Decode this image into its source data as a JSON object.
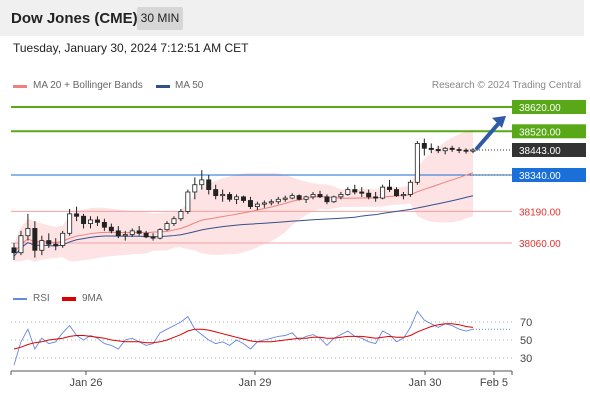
{
  "header": {
    "title": "Dow Jones (CME)",
    "timeframe": "30 MIN",
    "datetime": "Tuesday, January 30, 2024 7:12:51 AM CET"
  },
  "legend": {
    "ma20": "MA 20 + Bollinger Bands",
    "ma50": "MA 50",
    "ma20_color": "#f08080",
    "ma50_color": "#34508c",
    "credit": "Research © 2024 Trading Central"
  },
  "rsi_legend": {
    "rsi": "RSI",
    "ma": "9MA",
    "rsi_color": "#6688dd",
    "ma_color": "#dd0000"
  },
  "chart_data": [
    {
      "type": "candlestick",
      "title": "Dow Jones (CME)",
      "timeframe": "30 MIN",
      "x_ticks": [
        "Jan 26",
        "Jan 29",
        "Jan 30",
        "Feb 5"
      ],
      "ylim": [
        37990,
        38700
      ],
      "last_price": 38443,
      "levels": [
        {
          "value": 38620,
          "label": "38620.00",
          "kind": "resistance",
          "color": "#58a818"
        },
        {
          "value": 38520,
          "label": "38520.00",
          "kind": "resistance",
          "color": "#58a818"
        },
        {
          "value": 38443,
          "label": "38443.00",
          "kind": "current",
          "color": "#333333"
        },
        {
          "value": 38340,
          "label": "38340.00",
          "kind": "pivot",
          "color": "#1a6fd8"
        },
        {
          "value": 38190,
          "label": "38190.00",
          "kind": "support",
          "color": "#e53030"
        },
        {
          "value": 38060,
          "label": "38060.00",
          "kind": "support",
          "color": "#e53030"
        }
      ],
      "forecast_arrow": {
        "from": 38445,
        "to": 38600,
        "color": "#2f5aa8"
      },
      "candles": [
        [
          38040,
          38060,
          37990,
          38020
        ],
        [
          38020,
          38110,
          38010,
          38090
        ],
        [
          38090,
          38180,
          38070,
          38120
        ],
        [
          38120,
          38150,
          38000,
          38030
        ],
        [
          38030,
          38090,
          38010,
          38070
        ],
        [
          38070,
          38100,
          38040,
          38055
        ],
        [
          38055,
          38080,
          38030,
          38050
        ],
        [
          38050,
          38110,
          38040,
          38100
        ],
        [
          38100,
          38200,
          38090,
          38180
        ],
        [
          38180,
          38210,
          38150,
          38170
        ],
        [
          38170,
          38180,
          38120,
          38140
        ],
        [
          38140,
          38170,
          38120,
          38155
        ],
        [
          38155,
          38170,
          38130,
          38145
        ],
        [
          38145,
          38160,
          38110,
          38125
        ],
        [
          38125,
          38140,
          38100,
          38110
        ],
        [
          38110,
          38130,
          38080,
          38090
        ],
        [
          38090,
          38110,
          38070,
          38095
        ],
        [
          38095,
          38120,
          38085,
          38110
        ],
        [
          38110,
          38130,
          38090,
          38100
        ],
        [
          38100,
          38110,
          38080,
          38085
        ],
        [
          38085,
          38100,
          38070,
          38080
        ],
        [
          38080,
          38120,
          38075,
          38115
        ],
        [
          38115,
          38150,
          38110,
          38140
        ],
        [
          38140,
          38170,
          38130,
          38160
        ],
        [
          38160,
          38200,
          38150,
          38190
        ],
        [
          38190,
          38280,
          38180,
          38270
        ],
        [
          38270,
          38330,
          38240,
          38300
        ],
        [
          38300,
          38360,
          38280,
          38320
        ],
        [
          38320,
          38340,
          38260,
          38280
        ],
        [
          38280,
          38300,
          38240,
          38255
        ],
        [
          38255,
          38280,
          38230,
          38260
        ],
        [
          38260,
          38270,
          38230,
          38240
        ],
        [
          38240,
          38260,
          38220,
          38250
        ],
        [
          38250,
          38255,
          38225,
          38235
        ],
        [
          38235,
          38250,
          38200,
          38210
        ],
        [
          38210,
          38230,
          38195,
          38220
        ],
        [
          38220,
          38235,
          38205,
          38225
        ],
        [
          38225,
          38240,
          38215,
          38230
        ],
        [
          38230,
          38250,
          38220,
          38240
        ],
        [
          38240,
          38255,
          38230,
          38245
        ],
        [
          38245,
          38265,
          38240,
          38255
        ],
        [
          38255,
          38260,
          38235,
          38240
        ],
        [
          38240,
          38255,
          38225,
          38250
        ],
        [
          38250,
          38270,
          38240,
          38260
        ],
        [
          38260,
          38275,
          38245,
          38250
        ],
        [
          38250,
          38260,
          38220,
          38230
        ],
        [
          38230,
          38255,
          38225,
          38250
        ],
        [
          38250,
          38270,
          38240,
          38260
        ],
        [
          38260,
          38290,
          38255,
          38280
        ],
        [
          38280,
          38300,
          38260,
          38270
        ],
        [
          38270,
          38290,
          38250,
          38265
        ],
        [
          38265,
          38280,
          38240,
          38250
        ],
        [
          38250,
          38270,
          38230,
          38245
        ],
        [
          38245,
          38300,
          38240,
          38290
        ],
        [
          38290,
          38320,
          38270,
          38280
        ],
        [
          38280,
          38290,
          38250,
          38255
        ],
        [
          38255,
          38270,
          38240,
          38260
        ],
        [
          38260,
          38320,
          38250,
          38310
        ],
        [
          38310,
          38480,
          38300,
          38470
        ],
        [
          38470,
          38490,
          38420,
          38450
        ],
        [
          38450,
          38470,
          38430,
          38445
        ],
        [
          38445,
          38460,
          38430,
          38440
        ],
        [
          38440,
          38455,
          38425,
          38450
        ],
        [
          38450,
          38460,
          38435,
          38445
        ],
        [
          38445,
          38455,
          38430,
          38442
        ],
        [
          38442,
          38450,
          38428,
          38438
        ],
        [
          38438,
          38450,
          38430,
          38443
        ]
      ]
    },
    {
      "type": "line",
      "title": "RSI",
      "series": [
        {
          "name": "RSI",
          "values": [
            22,
            48,
            62,
            40,
            52,
            46,
            48,
            58,
            66,
            55,
            50,
            55,
            52,
            46,
            44,
            40,
            50,
            52,
            48,
            44,
            46,
            58,
            62,
            66,
            70,
            76,
            62,
            56,
            50,
            46,
            48,
            44,
            50,
            46,
            40,
            48,
            50,
            52,
            54,
            55,
            58,
            50,
            54,
            56,
            52,
            44,
            52,
            56,
            60,
            54,
            52,
            48,
            46,
            60,
            56,
            48,
            52,
            64,
            82,
            72,
            68,
            64,
            68,
            66,
            62,
            60,
            62
          ]
        },
        {
          "name": "9MA",
          "values": [
            40,
            42,
            45,
            47,
            48,
            50,
            51,
            52,
            54,
            55,
            55,
            54,
            53,
            52,
            50,
            49,
            48,
            48,
            48,
            47,
            47,
            48,
            50,
            53,
            56,
            60,
            62,
            62,
            61,
            59,
            57,
            55,
            53,
            51,
            49,
            48,
            48,
            48,
            49,
            50,
            51,
            52,
            52,
            53,
            53,
            52,
            52,
            53,
            54,
            54,
            54,
            53,
            52,
            53,
            54,
            53,
            53,
            55,
            59,
            62,
            65,
            67,
            68,
            68,
            67,
            65,
            64
          ]
        }
      ],
      "y_ticks": [
        "70",
        "50",
        "30"
      ],
      "ylim": [
        10,
        95
      ]
    }
  ]
}
